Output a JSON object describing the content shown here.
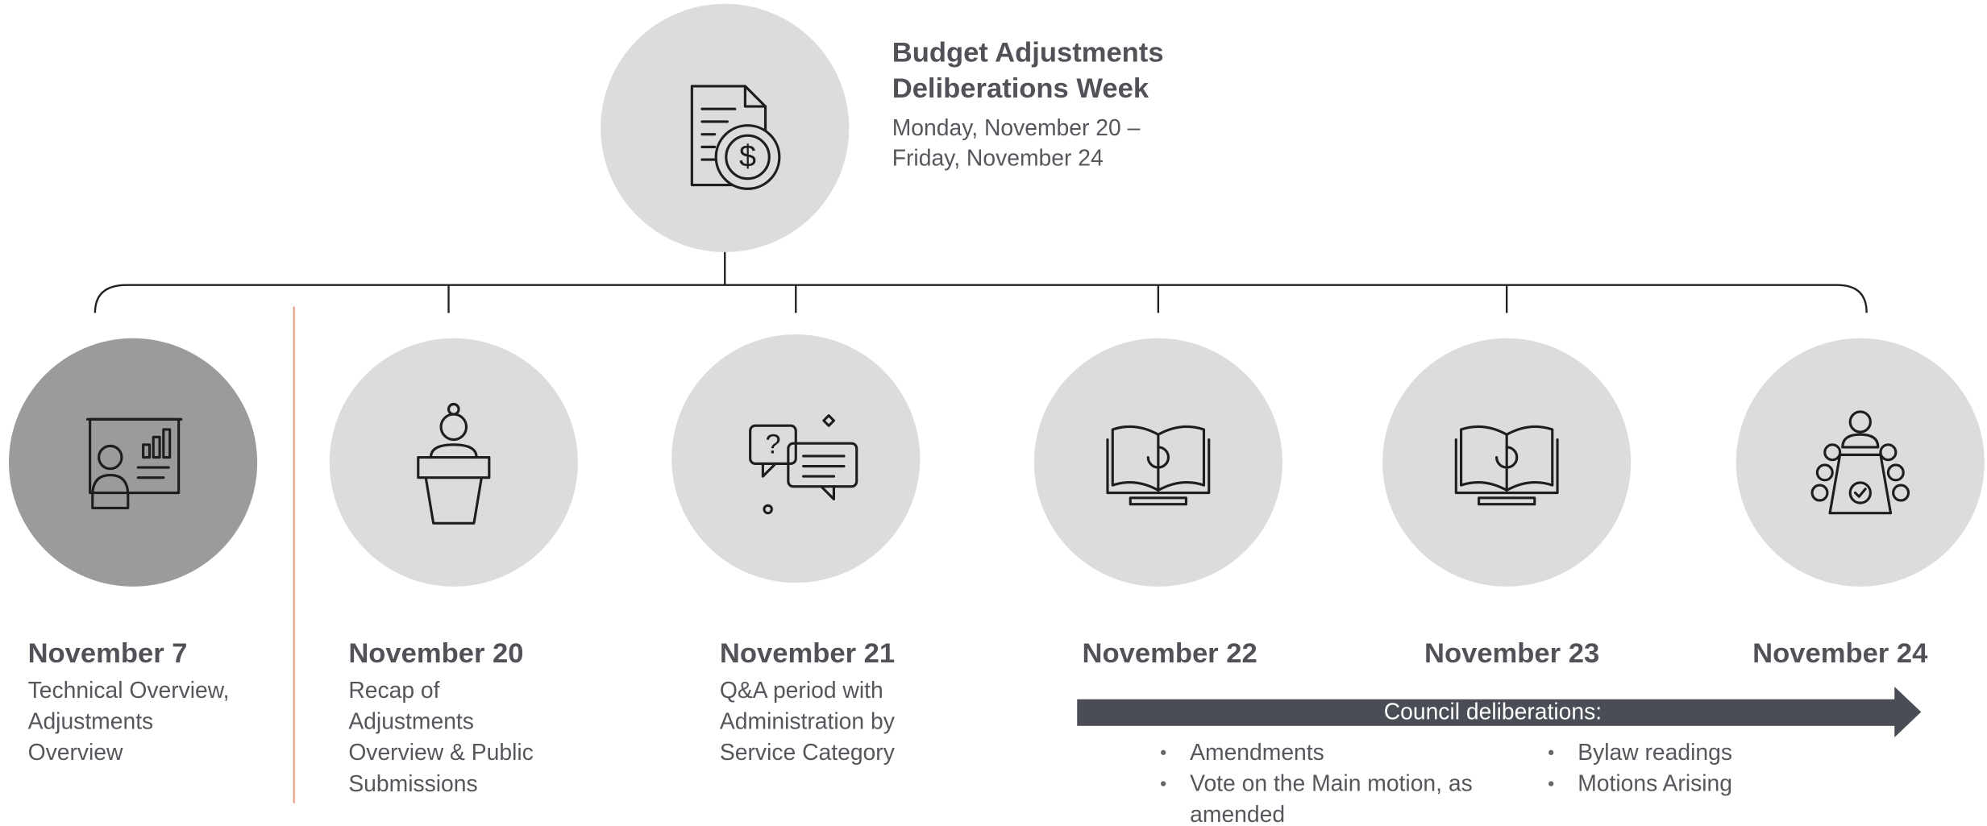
{
  "header": {
    "title": [
      "Budget Adjustments",
      "Deliberations Week"
    ],
    "subtitle": [
      "Monday, November 20 –",
      "Friday, November 24"
    ]
  },
  "events": [
    {
      "date": "November 7",
      "description": [
        "Technical Overview,",
        "Adjustments",
        "Overview"
      ]
    },
    {
      "date": "November 20",
      "description": [
        "Recap of",
        "Adjustments",
        "Overview & Public",
        "Submissions"
      ]
    },
    {
      "date": "November 21",
      "description": [
        "Q&A period with",
        "Administration by",
        "Service Category"
      ]
    },
    {
      "date": "November 22",
      "description": []
    },
    {
      "date": "November 23",
      "description": []
    },
    {
      "date": "November 24",
      "description": []
    }
  ],
  "deliberations": {
    "label": "Council deliberations:",
    "columns": [
      [
        [
          "Amendments"
        ],
        [
          "Vote on the Main motion, as",
          "amended"
        ]
      ],
      [
        [
          "Bylaw readings"
        ],
        [
          "Motions Arising"
        ]
      ]
    ]
  }
}
